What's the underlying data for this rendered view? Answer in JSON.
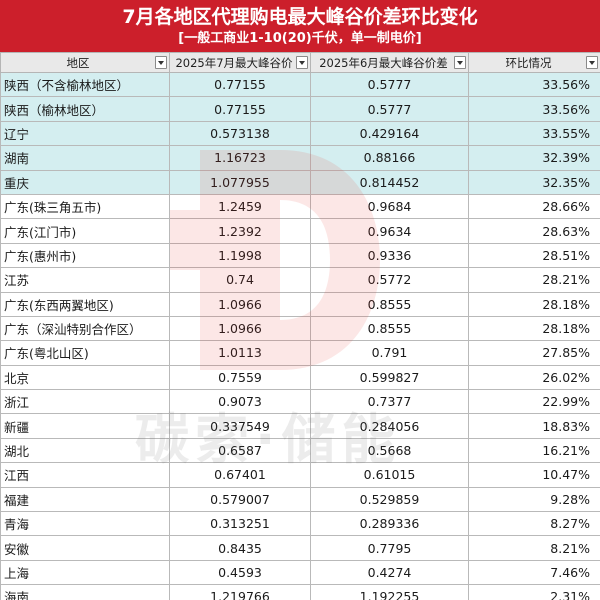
{
  "header": {
    "title": "7月各地区代理购电最大峰谷价差环比变化",
    "subtitle": "[一般工商业1-10(20)千伏，单一制电价]"
  },
  "table": {
    "columns": [
      "地区",
      "2025年7月最大峰谷价",
      "2025年6月最大峰谷价差",
      "环比情况"
    ],
    "rows": [
      {
        "region": "陕西（不含榆林地区）",
        "jul": "0.77155",
        "jun": "0.5777",
        "ratio": "33.56%",
        "highlight": true
      },
      {
        "region": "陕西（榆林地区）",
        "jul": "0.77155",
        "jun": "0.5777",
        "ratio": "33.56%",
        "highlight": true
      },
      {
        "region": "辽宁",
        "jul": "0.573138",
        "jun": "0.429164",
        "ratio": "33.55%",
        "highlight": true
      },
      {
        "region": "湖南",
        "jul": "1.16723",
        "jun": "0.88166",
        "ratio": "32.39%",
        "highlight": true
      },
      {
        "region": "重庆",
        "jul": "1.077955",
        "jun": "0.814452",
        "ratio": "32.35%",
        "highlight": true
      },
      {
        "region": "广东(珠三角五市)",
        "jul": "1.2459",
        "jun": "0.9684",
        "ratio": "28.66%",
        "highlight": false
      },
      {
        "region": "广东(江门市)",
        "jul": "1.2392",
        "jun": "0.9634",
        "ratio": "28.63%",
        "highlight": false
      },
      {
        "region": "广东(惠州市)",
        "jul": "1.1998",
        "jun": "0.9336",
        "ratio": "28.51%",
        "highlight": false
      },
      {
        "region": "江苏",
        "jul": "0.74",
        "jun": "0.5772",
        "ratio": "28.21%",
        "highlight": false
      },
      {
        "region": "广东(东西两翼地区)",
        "jul": "1.0966",
        "jun": "0.8555",
        "ratio": "28.18%",
        "highlight": false
      },
      {
        "region": "广东（深汕特别合作区）",
        "jul": "1.0966",
        "jun": "0.8555",
        "ratio": "28.18%",
        "highlight": false
      },
      {
        "region": "广东(粤北山区)",
        "jul": "1.0113",
        "jun": "0.791",
        "ratio": "27.85%",
        "highlight": false
      },
      {
        "region": "北京",
        "jul": "0.7559",
        "jun": "0.599827",
        "ratio": "26.02%",
        "highlight": false
      },
      {
        "region": "浙江",
        "jul": "0.9073",
        "jun": "0.7377",
        "ratio": "22.99%",
        "highlight": false
      },
      {
        "region": "新疆",
        "jul": "0.337549",
        "jun": "0.284056",
        "ratio": "18.83%",
        "highlight": false
      },
      {
        "region": "湖北",
        "jul": "0.6587",
        "jun": "0.5668",
        "ratio": "16.21%",
        "highlight": false
      },
      {
        "region": "江西",
        "jul": "0.67401",
        "jun": "0.61015",
        "ratio": "10.47%",
        "highlight": false
      },
      {
        "region": "福建",
        "jul": "0.579007",
        "jun": "0.529859",
        "ratio": "9.28%",
        "highlight": false
      },
      {
        "region": "青海",
        "jul": "0.313251",
        "jun": "0.289336",
        "ratio": "8.27%",
        "highlight": false
      },
      {
        "region": "安徽",
        "jul": "0.8435",
        "jun": "0.7795",
        "ratio": "8.21%",
        "highlight": false
      },
      {
        "region": "上海",
        "jul": "0.4593",
        "jun": "0.4274",
        "ratio": "7.46%",
        "highlight": false
      },
      {
        "region": "海南",
        "jul": "1.219766",
        "jun": "1.192255",
        "ratio": "2.31%",
        "highlight": false
      }
    ]
  },
  "watermark": {
    "text": "碳索·储能",
    "logo_icon": "carbon-storage-logo-watermark",
    "logo_color": "#e53935"
  }
}
